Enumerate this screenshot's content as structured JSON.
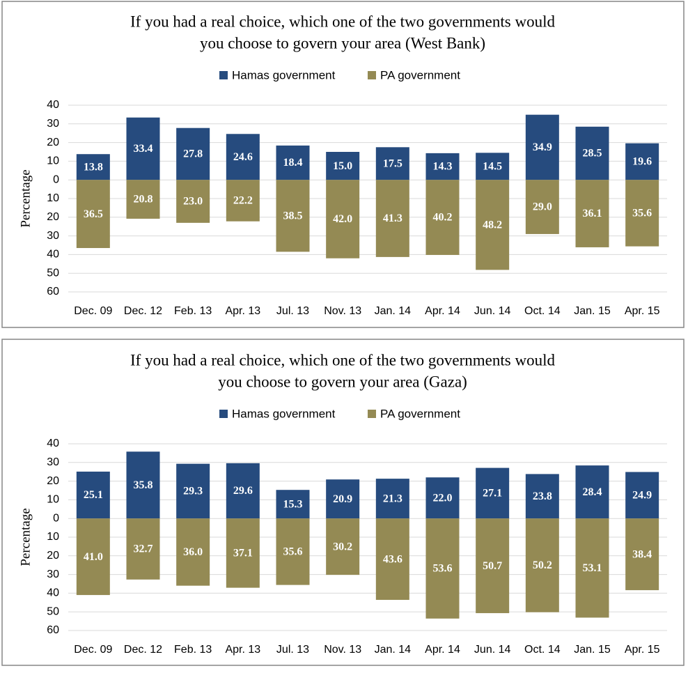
{
  "chart_data": [
    {
      "type": "bar",
      "title": [
        "If you had a real choice, which one of the two governments would",
        "you choose to govern your area (West Bank)"
      ],
      "y_label": "Percentage",
      "categories": [
        "Dec. 09",
        "Dec. 12",
        "Feb. 13",
        "Apr. 13",
        "Jul. 13",
        "Nov. 13",
        "Jan. 14",
        "Apr. 14",
        "Jun. 14",
        "Oct. 14",
        "Jan. 15",
        "Apr. 15"
      ],
      "series": [
        {
          "name": "Hamas government",
          "color": "#264b7e",
          "values": [
            13.8,
            33.4,
            27.8,
            24.6,
            18.4,
            15.0,
            17.5,
            14.3,
            14.5,
            34.9,
            28.5,
            19.6
          ],
          "value_labels": [
            "13.8",
            "33.4",
            "27.8",
            "24.6",
            "18.4",
            "15.0",
            "17.5",
            "14.3",
            "14.5",
            "34.9",
            "28.5",
            "19.6"
          ]
        },
        {
          "name": "PA government",
          "color": "#948a54",
          "values": [
            -36.5,
            -20.8,
            -23.0,
            -22.2,
            -38.5,
            -42.0,
            -41.3,
            -40.2,
            -48.2,
            -29.0,
            -36.1,
            -35.6
          ],
          "value_labels": [
            "36.5",
            "20.8",
            "23.0",
            "22.2",
            "38.5",
            "42.0",
            "41.3",
            "40.2",
            "48.2",
            "29.0",
            "36.1",
            "35.6"
          ]
        }
      ],
      "ylim": [
        -60,
        40
      ],
      "yticks": [
        40,
        30,
        20,
        10,
        0,
        {
          "value": -10,
          "label": "10"
        },
        {
          "value": -20,
          "label": "20"
        },
        {
          "value": -30,
          "label": "30"
        },
        {
          "value": -40,
          "label": "40"
        },
        {
          "value": -50,
          "label": "50"
        },
        {
          "value": -60,
          "label": "60"
        }
      ],
      "grid": true,
      "legend": "top"
    },
    {
      "type": "bar",
      "title": [
        "If you had a real choice, which one of the two governments would",
        "you choose to govern your area (Gaza)"
      ],
      "y_label": "Percentage",
      "categories": [
        "Dec. 09",
        "Dec. 12",
        "Feb. 13",
        "Apr. 13",
        "Jul. 13",
        "Nov. 13",
        "Jan. 14",
        "Apr. 14",
        "Jun. 14",
        "Oct. 14",
        "Jan. 15",
        "Apr. 15"
      ],
      "series": [
        {
          "name": "Hamas government",
          "color": "#264b7e",
          "values": [
            25.1,
            35.8,
            29.3,
            29.6,
            15.3,
            20.9,
            21.3,
            22.0,
            27.1,
            23.8,
            28.4,
            24.9
          ],
          "value_labels": [
            "25.1",
            "35.8",
            "29.3",
            "29.6",
            "15.3",
            "20.9",
            "21.3",
            "22.0",
            "27.1",
            "23.8",
            "28.4",
            "24.9"
          ]
        },
        {
          "name": "PA government",
          "color": "#948a54",
          "values": [
            -41.0,
            -32.7,
            -36.0,
            -37.1,
            -35.6,
            -30.2,
            -43.6,
            -53.6,
            -50.7,
            -50.2,
            -53.1,
            -38.4
          ],
          "value_labels": [
            "41.0",
            "32.7",
            "36.0",
            "37.1",
            "35.6",
            "30.2",
            "43.6",
            "53.6",
            "50.7",
            "50.2",
            "53.1",
            "38.4"
          ]
        }
      ],
      "ylim": [
        -60,
        40
      ],
      "yticks": [
        40,
        30,
        20,
        10,
        0,
        {
          "value": -10,
          "label": "10"
        },
        {
          "value": -20,
          "label": "20"
        },
        {
          "value": -30,
          "label": "30"
        },
        {
          "value": -40,
          "label": "40"
        },
        {
          "value": -50,
          "label": "50"
        },
        {
          "value": -60,
          "label": "60"
        }
      ],
      "grid": true,
      "legend": "top"
    }
  ]
}
